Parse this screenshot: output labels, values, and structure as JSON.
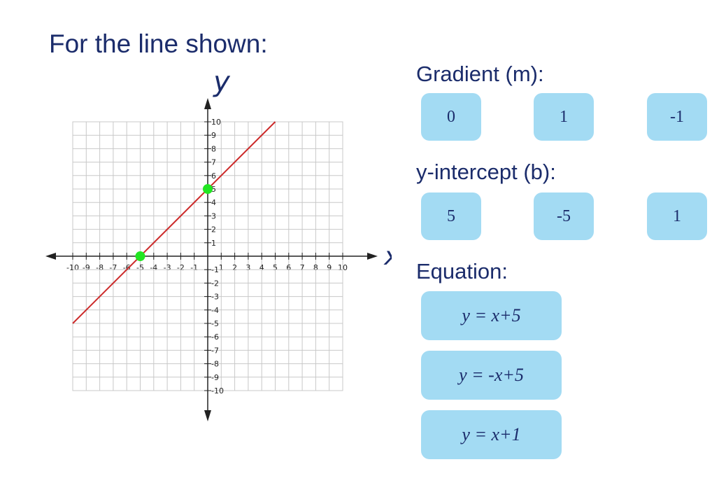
{
  "header": {
    "title": "For the line shown:"
  },
  "chart_data": {
    "type": "line",
    "x_label": "x",
    "y_label": "y",
    "xlim": [
      -10,
      10
    ],
    "ylim": [
      -10,
      10
    ],
    "xticks": [
      -10,
      -9,
      -8,
      -7,
      -6,
      -5,
      -4,
      -3,
      -2,
      -1,
      1,
      2,
      3,
      4,
      5,
      6,
      7,
      8,
      9,
      10
    ],
    "yticks": [
      -10,
      -9,
      -8,
      -7,
      -6,
      -5,
      -4,
      -3,
      -2,
      -1,
      1,
      2,
      3,
      4,
      5,
      6,
      7,
      8,
      9,
      10
    ],
    "grid": true,
    "series": [
      {
        "color": "#cc2a2a",
        "x": [
          -10,
          5
        ],
        "values": [
          -5,
          10
        ]
      }
    ],
    "points": {
      "color": "#22e622",
      "x": [
        -5,
        0
      ],
      "values": [
        0,
        5
      ]
    }
  },
  "questions": [
    {
      "label": "Gradient (m):",
      "options": [
        "0",
        "1",
        "-1"
      ]
    },
    {
      "label": "y-intercept (b):",
      "options": [
        "5",
        "-5",
        "1"
      ]
    },
    {
      "label": "Equation:",
      "options": [
        "y = x+5",
        "y = -x+5",
        "y = x+1"
      ]
    }
  ]
}
